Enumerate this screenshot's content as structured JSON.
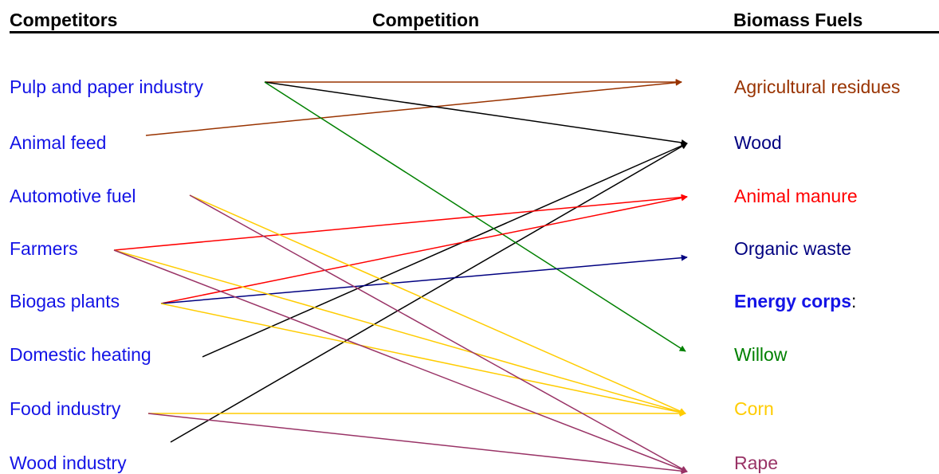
{
  "headers": {
    "competitors": "Competitors",
    "competition": "Competition",
    "fuels": "Biomass Fuels"
  },
  "competitors": [
    {
      "id": "pulp",
      "label": "Pulp and paper industry"
    },
    {
      "id": "feed",
      "label": "Animal feed"
    },
    {
      "id": "auto",
      "label": "Automotive fuel"
    },
    {
      "id": "farmers",
      "label": "Farmers"
    },
    {
      "id": "biogas",
      "label": "Biogas plants"
    },
    {
      "id": "heating",
      "label": "Domestic heating"
    },
    {
      "id": "food",
      "label": "Food industry"
    },
    {
      "id": "woodind",
      "label": "Wood industry"
    }
  ],
  "competitor_color": "#1414e6",
  "fuels": [
    {
      "id": "agri",
      "label": "Agricultural residues",
      "color": "#993300"
    },
    {
      "id": "wood",
      "label": "Wood",
      "color": "#000080"
    },
    {
      "id": "manure",
      "label": "Animal manure",
      "color": "#ff0000"
    },
    {
      "id": "organic",
      "label": "Organic waste",
      "color": "#000080"
    },
    {
      "id": "energy",
      "label": "Energy corps",
      "suffix": ":",
      "color": "#1414e6",
      "bold": true
    },
    {
      "id": "willow",
      "label": "Willow",
      "color": "#008000"
    },
    {
      "id": "corn",
      "label": "Corn",
      "color": "#ffcc00"
    },
    {
      "id": "rape",
      "label": "Rape",
      "color": "#993366"
    }
  ],
  "links": [
    {
      "from": "pulp",
      "to": "agri",
      "color": "#993300"
    },
    {
      "from": "feed",
      "to": "agri",
      "color": "#993300"
    },
    {
      "from": "pulp",
      "to": "wood",
      "color": "#000000"
    },
    {
      "from": "heating",
      "to": "wood",
      "color": "#000000"
    },
    {
      "from": "woodind",
      "to": "wood",
      "color": "#000000"
    },
    {
      "from": "pulp",
      "to": "willow",
      "color": "#008000"
    },
    {
      "from": "farmers",
      "to": "manure",
      "color": "#ff0000"
    },
    {
      "from": "biogas",
      "to": "manure",
      "color": "#ff0000"
    },
    {
      "from": "biogas",
      "to": "organic",
      "color": "#000080"
    },
    {
      "from": "auto",
      "to": "corn",
      "color": "#ffcc00"
    },
    {
      "from": "farmers",
      "to": "corn",
      "color": "#ffcc00"
    },
    {
      "from": "biogas",
      "to": "corn",
      "color": "#ffcc00"
    },
    {
      "from": "food",
      "to": "corn",
      "color": "#ffcc00"
    },
    {
      "from": "auto",
      "to": "rape",
      "color": "#993366"
    },
    {
      "from": "farmers",
      "to": "rape",
      "color": "#993366"
    },
    {
      "from": "food",
      "to": "rape",
      "color": "#993366"
    }
  ]
}
